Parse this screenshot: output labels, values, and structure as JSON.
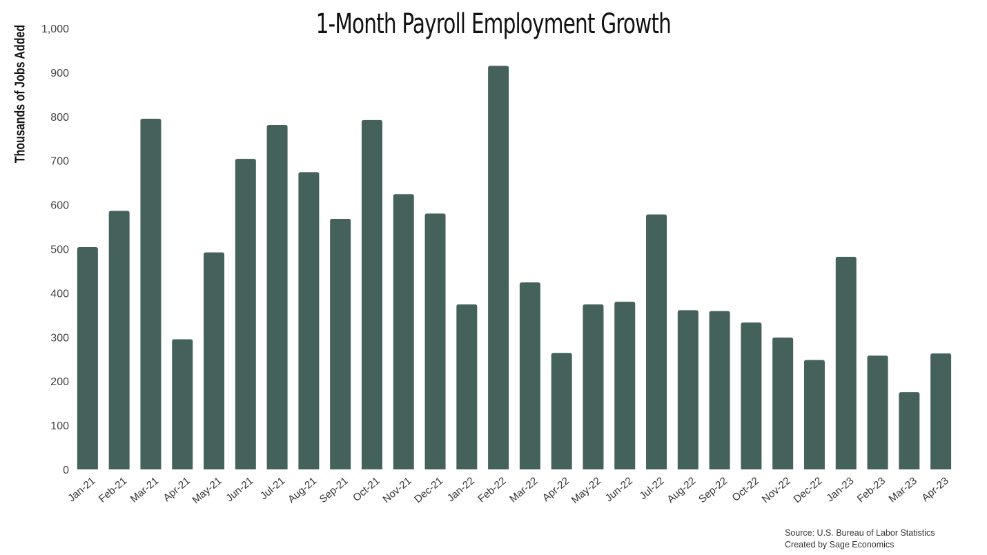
{
  "chart_data": {
    "type": "bar",
    "title": "1-Month Payroll Employment Growth",
    "ylabel": "Thousands of Jobs Added",
    "xlabel": "",
    "ylim": [
      0,
      1000
    ],
    "yticks": [
      0,
      100,
      200,
      300,
      400,
      500,
      600,
      700,
      800,
      900,
      1000
    ],
    "ytick_labels": [
      "0",
      "100",
      "200",
      "300",
      "400",
      "500",
      "600",
      "700",
      "800",
      "900",
      "1,000"
    ],
    "categories": [
      "Jan-21",
      "Feb-21",
      "Mar-21",
      "Apr-21",
      "May-21",
      "Jun-21",
      "Jul-21",
      "Aug-21",
      "Sep-21",
      "Oct-21",
      "Nov-21",
      "Dec-21",
      "Jan-22",
      "Feb-22",
      "Mar-22",
      "Apr-22",
      "May-22",
      "Jun-22",
      "Jul-22",
      "Aug-22",
      "Sep-22",
      "Oct-22",
      "Nov-22",
      "Dec-22",
      "Jan-23",
      "Feb-23",
      "Mar-23",
      "Apr-23"
    ],
    "values": [
      504,
      586,
      795,
      295,
      492,
      704,
      781,
      674,
      568,
      792,
      624,
      580,
      374,
      915,
      424,
      264,
      374,
      380,
      578,
      361,
      359,
      333,
      299,
      248,
      482,
      258,
      175,
      263
    ],
    "bar_color": "#44625b",
    "grid": false,
    "legend": "none",
    "source_lines": [
      "Source: U.S. Bureau of Labor Statistics",
      "Created by Sage Economics"
    ]
  }
}
